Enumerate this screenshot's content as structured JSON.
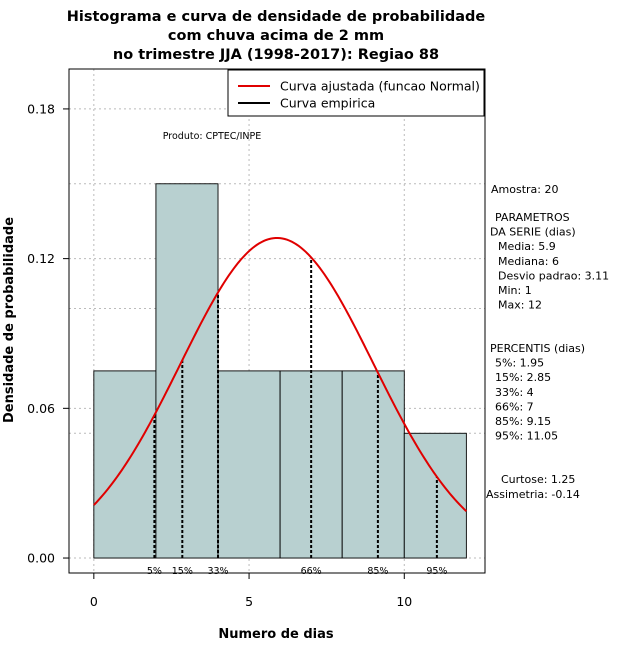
{
  "chart_data": {
    "type": "histogram",
    "title_lines": [
      "Histograma e curva de densidade de probabilidade",
      "com chuva acima de 2 mm",
      "no trimestre JJA (1998-2017): Regiao 88"
    ],
    "xlabel": "Numero de dias",
    "ylabel": "Densidade de probabilidade",
    "xlim": [
      -0.8,
      12.6
    ],
    "ylim": [
      -0.006,
      0.196
    ],
    "x_ticks": [
      0,
      5,
      10
    ],
    "y_ticks": [
      0.0,
      0.06,
      0.12,
      0.18
    ],
    "y_tick_labels": [
      "0.00",
      "0.06",
      "0.12",
      "0.18"
    ],
    "grid": true,
    "bar_color": "#b8d0d0",
    "curve_color": "#e00000",
    "bins": [
      {
        "x0": 0,
        "x1": 2,
        "density": 0.075
      },
      {
        "x0": 2,
        "x1": 4,
        "density": 0.15
      },
      {
        "x0": 4,
        "x1": 6,
        "density": 0.075
      },
      {
        "x0": 6,
        "x1": 8,
        "density": 0.075
      },
      {
        "x0": 8,
        "x1": 10,
        "density": 0.075
      },
      {
        "x0": 10,
        "x1": 12,
        "density": 0.05
      }
    ],
    "normal_fit": {
      "mean": 5.9,
      "sd": 3.11,
      "x_range": [
        0,
        12
      ]
    },
    "percentiles": [
      {
        "label": "5%",
        "x": 1.95
      },
      {
        "label": "15%",
        "x": 2.85
      },
      {
        "label": "33%",
        "x": 4
      },
      {
        "label": "66%",
        "x": 7
      },
      {
        "label": "85%",
        "x": 9.15
      },
      {
        "label": "95%",
        "x": 11.05
      }
    ],
    "legend": {
      "position": "top-right",
      "entries": [
        {
          "label": "Curva ajustada (funcao Normal)",
          "color": "#e00000"
        },
        {
          "label": "Curva empirica",
          "color": "#000000"
        }
      ]
    },
    "annotation": "Produto: CPTEC/INPE"
  },
  "side_panel": {
    "sample": "Amostra: 20",
    "params_lines": [
      "PARAMETROS",
      "DA SERIE (dias)",
      "Media: 5.9",
      "Mediana: 6",
      "Desvio padrao: 3.11",
      "Min: 1",
      "Max: 12"
    ],
    "percentile_lines": [
      "PERCENTIS (dias)",
      "5%: 1.95",
      "15%: 2.85",
      "33%: 4",
      "66%: 7",
      "85%: 9.15",
      "95%: 11.05"
    ],
    "shape_lines": [
      "Curtose: 1.25",
      "Assimetria: -0.14"
    ]
  }
}
